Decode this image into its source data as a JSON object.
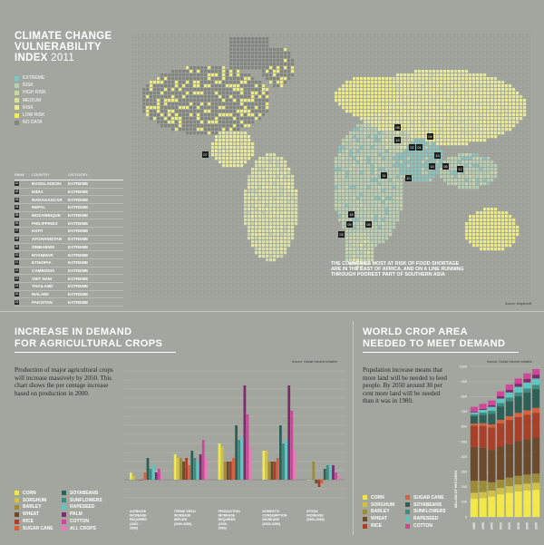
{
  "title": {
    "line1": "CLIMATE CHANGE",
    "line2": "VULNERABILITY",
    "line3a": "INDEX ",
    "line3b": "2011"
  },
  "risk_legend": [
    {
      "label": "EXTREME",
      "color": "#7cc8c4"
    },
    {
      "label": "RISK",
      "color": "#b4d2b0"
    },
    {
      "label": "HIGH RISK",
      "color": "#c8d8a4"
    },
    {
      "label": "MEDIUM",
      "color": "#dce39a"
    },
    {
      "label": "RISK",
      "color": "#eaea8e"
    },
    {
      "label": "LOW RISK",
      "color": "#f2ee62"
    },
    {
      "label": "NO DATA",
      "color": "#828580"
    }
  ],
  "rank_table": {
    "headers": {
      "rank": "RANK",
      "country": "COUNTRY",
      "category": "CATEGORY"
    },
    "rows": [
      {
        "rank": "01",
        "country": "BANGLADESH",
        "category": "EXTREME"
      },
      {
        "rank": "02",
        "country": "INDIA",
        "category": "EXTREME"
      },
      {
        "rank": "03",
        "country": "MADAGASCAR",
        "category": "EXTREME"
      },
      {
        "rank": "04",
        "country": "NEPAL",
        "category": "EXTREME"
      },
      {
        "rank": "05",
        "country": "MOZAMBIQUE",
        "category": "EXTREME"
      },
      {
        "rank": "06",
        "country": "PHILIPPINES",
        "category": "EXTREME"
      },
      {
        "rank": "07",
        "country": "HAITI",
        "category": "EXTREME"
      },
      {
        "rank": "08",
        "country": "AFGHANISTAN",
        "category": "EXTREME"
      },
      {
        "rank": "09",
        "country": "ZIMBABWE",
        "category": "EXTREME"
      },
      {
        "rank": "10",
        "country": "MYANMAR",
        "category": "EXTREME"
      },
      {
        "rank": "11",
        "country": "ETHIOPIA",
        "category": "EXTREME"
      },
      {
        "rank": "12",
        "country": "CAMBODIA",
        "category": "EXTREME"
      },
      {
        "rank": "13",
        "country": "VIET NAM",
        "category": "EXTREME"
      },
      {
        "rank": "14",
        "country": "THAILAND",
        "category": "EXTREME"
      },
      {
        "rank": "15",
        "country": "MALAWI",
        "category": "EXTREME"
      },
      {
        "rank": "16",
        "country": "PAKISTAN",
        "category": "EXTREME"
      }
    ]
  },
  "map": {
    "markers": [
      "07",
      "08",
      "16",
      "04",
      "02",
      "01",
      "10",
      "13",
      "14",
      "06",
      "12",
      "11",
      "15",
      "09",
      "05",
      "03"
    ],
    "note": "THE COUNTRIES MOST AT RISK OF FOOD SHORTAGE ARE IN THE EAST OF AFRICA, AND ON A LINE RUNNING THROUGH POOREST PART OF SOUTHERN ASIA",
    "source": "Source: Maplecroft"
  },
  "demand": {
    "title1": "INCREASE IN DEMAND",
    "title2": "FOR AGRICULTURAL CROPS",
    "body": "Production of major agricultural crops will increase massively by 2050. This chart shows the per centage increase based on production in 2000.",
    "source": "Source: Global Harvest Initiative"
  },
  "crops": [
    {
      "name": "CORN",
      "color": "#f2e84a"
    },
    {
      "name": "SORGHUM",
      "color": "#cfc24a"
    },
    {
      "name": "BARLEY",
      "color": "#9c8c3a"
    },
    {
      "name": "WHEAT",
      "color": "#6b4a2e"
    },
    {
      "name": "RICE",
      "color": "#a9402a"
    },
    {
      "name": "SUGAR CANE",
      "color": "#d8603a"
    },
    {
      "name": "SOYABEANS",
      "color": "#2f6058"
    },
    {
      "name": "SUNFLOWERS",
      "color": "#3d8c82"
    },
    {
      "name": "RAPESEED",
      "color": "#5cc8c4"
    },
    {
      "name": "PALM",
      "color": "#7a2e6a"
    },
    {
      "name": "COTTON",
      "color": "#d0469a"
    },
    {
      "name": "ALL CROPS",
      "color": "#e87ab8"
    }
  ],
  "area": {
    "title1": "WORLD CROP AREA",
    "title2": "NEEDED TO MEET DEMAND",
    "body": "Population increase means that more land will be needed to feed people. By 2050 around 30 per cent more land will be needed than it was in 1980.",
    "source": "Source: Global Harvest Initiative"
  },
  "chart_data": [
    {
      "type": "bar",
      "source": "Source: Global Harvest Initiative",
      "categories": [
        "ACREAGE INCREASE REQUIRED (2000 - 2050)",
        "TREND YIELD INCREASE IMPLIED (2000-2050)",
        "PRODUCTION INCREASE REQUIRED (2000 - 2050)",
        "DOMESTIC CONSUMPTION INCREASE (2000-2050)",
        "STOCK INCREASE (2000-2050)"
      ],
      "ylim": [
        -5,
        30
      ],
      "grid": true,
      "series": [
        {
          "name": "CORN",
          "values": [
            2,
            7,
            10,
            8,
            0
          ]
        },
        {
          "name": "SORGHUM",
          "values": [
            1,
            6,
            9,
            8,
            0
          ]
        },
        {
          "name": "BARLEY",
          "values": [
            0,
            6,
            5,
            5,
            5
          ]
        },
        {
          "name": "WHEAT",
          "values": [
            0,
            5,
            5,
            5,
            -1
          ]
        },
        {
          "name": "RICE",
          "values": [
            0,
            6,
            5,
            5,
            -2
          ]
        },
        {
          "name": "SUGAR CANE",
          "values": [
            2,
            4,
            6,
            6,
            -1
          ]
        },
        {
          "name": "SOYABEANS",
          "values": [
            6,
            8,
            15,
            15,
            3
          ]
        },
        {
          "name": "SUNFLOWERS",
          "values": [
            3,
            6,
            11,
            10,
            4
          ]
        },
        {
          "name": "RAPESEED",
          "values": [
            4,
            5,
            12,
            11,
            4
          ]
        },
        {
          "name": "PALM",
          "values": [
            2,
            7,
            26,
            26,
            4
          ]
        },
        {
          "name": "COTTON",
          "values": [
            3,
            11,
            18,
            19,
            2
          ]
        },
        {
          "name": "ALL CROPS",
          "values": [
            1,
            6,
            9,
            8,
            1
          ]
        }
      ]
    },
    {
      "type": "bar",
      "stacked": true,
      "source": "Source: Global Harvest Initiative",
      "categories": [
        "1980",
        "1990",
        "2000",
        "2010",
        "2020",
        "2030",
        "2040",
        "2050"
      ],
      "ylabel": "MILLION OF HECTARES",
      "ylim": [
        0,
        1000
      ],
      "yticks": [
        0,
        100,
        200,
        300,
        400,
        500,
        600,
        700,
        800,
        900,
        1000
      ],
      "grid": true,
      "series": [
        {
          "name": "CORN",
          "values": [
            120,
            125,
            135,
            150,
            160,
            170,
            175,
            180
          ]
        },
        {
          "name": "SORGHUM",
          "values": [
            40,
            40,
            40,
            42,
            44,
            45,
            46,
            47
          ]
        },
        {
          "name": "BARLEY",
          "values": [
            80,
            75,
            55,
            55,
            57,
            58,
            60,
            60
          ]
        },
        {
          "name": "WHEAT",
          "values": [
            225,
            220,
            215,
            220,
            225,
            230,
            235,
            240
          ]
        },
        {
          "name": "RICE",
          "values": [
            140,
            145,
            150,
            155,
            158,
            160,
            162,
            165
          ]
        },
        {
          "name": "SUGAR CANE",
          "values": [
            15,
            17,
            19,
            22,
            25,
            28,
            30,
            32
          ]
        },
        {
          "name": "SOYABEANS",
          "values": [
            50,
            55,
            72,
            90,
            100,
            110,
            118,
            125
          ]
        },
        {
          "name": "SUNFLOWERS",
          "values": [
            12,
            16,
            20,
            22,
            24,
            26,
            27,
            28
          ]
        },
        {
          "name": "RAPESEED",
          "values": [
            12,
            18,
            25,
            30,
            34,
            37,
            40,
            42
          ]
        },
        {
          "name": "PALM",
          "values": [
            5,
            7,
            10,
            15,
            18,
            21,
            24,
            26
          ]
        },
        {
          "name": "COTTON",
          "values": [
            32,
            33,
            32,
            33,
            34,
            35,
            36,
            37
          ]
        }
      ]
    }
  ]
}
